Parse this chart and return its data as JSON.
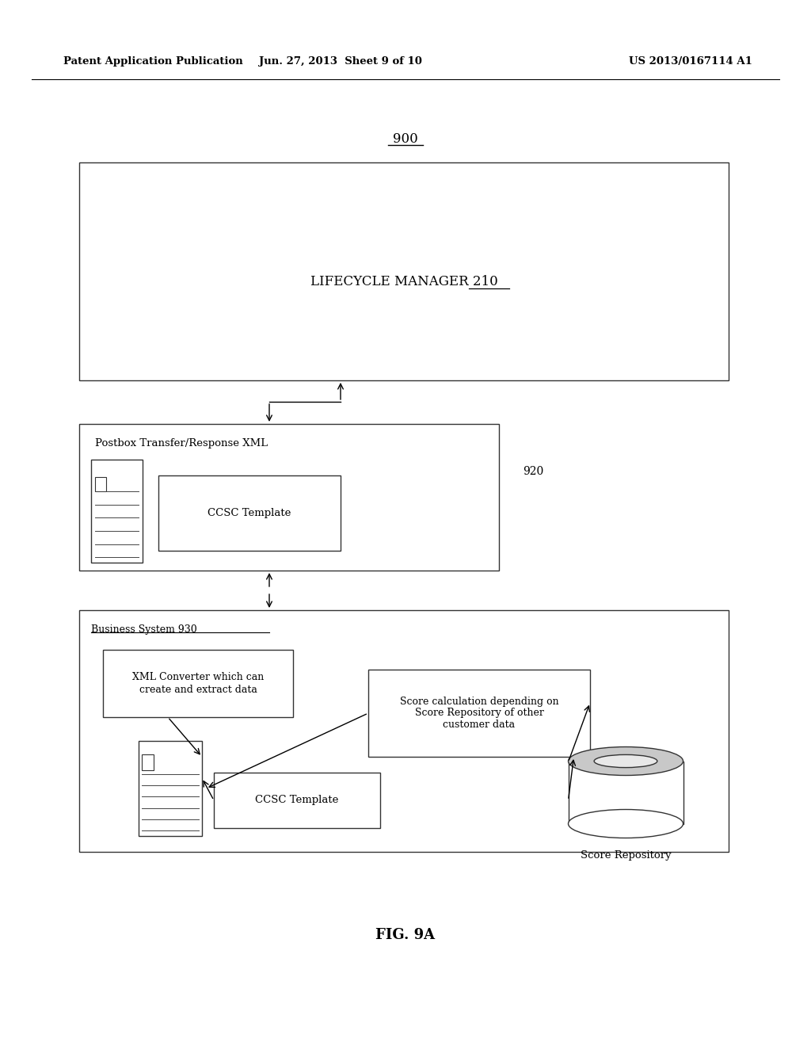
{
  "bg_color": "#ffffff",
  "header_left": "Patent Application Publication",
  "header_mid": "Jun. 27, 2013  Sheet 9 of 10",
  "header_right": "US 2013/0167114 A1",
  "fig_label": "900",
  "fig_caption": "FIG. 9A",
  "lifecycle_label": "LIFECYCLE MANAGER ",
  "lifecycle_num": "210",
  "postbox_label": "Postbox Transfer/Response XML",
  "postbox_num": "920",
  "ccsc_top_label": "CCSC Template",
  "biz_label": "Business System 930",
  "xml_converter_label": "XML Converter which can\ncreate and extract data",
  "score_calc_label": "Score calculation depending on\nScore Repository of other\ncustomer data",
  "ccsc_bot_label": "CCSC Template",
  "score_repo_label": "Score Repository"
}
